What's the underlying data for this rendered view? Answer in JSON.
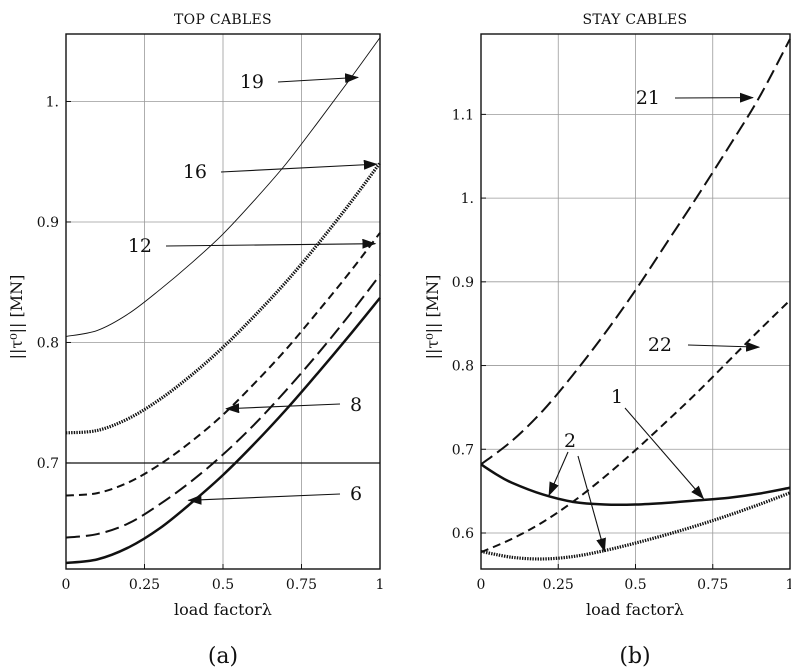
{
  "chart_data": [
    {
      "type": "line",
      "panel_caption": "(a)",
      "title": "TOP CABLES",
      "xlabel": "load factorλ",
      "ylabel": "||τ⁰|| [MN]",
      "xlim": [
        0,
        1
      ],
      "ylim": [
        0.612,
        1.056
      ],
      "xticks": [
        0,
        0.25,
        0.5,
        0.75,
        1
      ],
      "xtick_labels": [
        "0",
        "0.25",
        "0.5",
        "0.75",
        "1"
      ],
      "yticks": [
        0.7,
        0.8,
        0.9,
        1.0
      ],
      "ytick_labels": [
        "0.7",
        "0.8",
        "0.9",
        "1."
      ],
      "grid": true,
      "reference_line_y": 0.7,
      "series": [
        {
          "name": "19",
          "style": "thin",
          "x": [
            0,
            0.1,
            0.2,
            0.3,
            0.4,
            0.5,
            0.6,
            0.7,
            0.8,
            0.9,
            1.0
          ],
          "y": [
            0.805,
            0.81,
            0.824,
            0.844,
            0.866,
            0.89,
            0.918,
            0.948,
            0.982,
            1.017,
            1.053
          ]
        },
        {
          "name": "16",
          "style": "dotted-thick",
          "x": [
            0,
            0.1,
            0.2,
            0.3,
            0.4,
            0.5,
            0.6,
            0.7,
            0.8,
            0.9,
            1.0
          ],
          "y": [
            0.725,
            0.727,
            0.737,
            0.753,
            0.773,
            0.796,
            0.822,
            0.85,
            0.881,
            0.914,
            0.949
          ]
        },
        {
          "name": "12",
          "style": "dashed",
          "x": [
            0,
            0.1,
            0.2,
            0.3,
            0.4,
            0.5,
            0.6,
            0.7,
            0.8,
            0.9,
            1.0
          ],
          "y": [
            0.673,
            0.675,
            0.684,
            0.699,
            0.718,
            0.74,
            0.766,
            0.794,
            0.825,
            0.857,
            0.891
          ]
        },
        {
          "name": "8",
          "style": "long-dashed",
          "x": [
            0,
            0.1,
            0.2,
            0.3,
            0.4,
            0.5,
            0.6,
            0.7,
            0.8,
            0.9,
            1.0
          ],
          "y": [
            0.638,
            0.641,
            0.65,
            0.666,
            0.685,
            0.707,
            0.732,
            0.76,
            0.79,
            0.822,
            0.856
          ]
        },
        {
          "name": "6",
          "style": "solid-thick",
          "x": [
            0,
            0.1,
            0.2,
            0.3,
            0.4,
            0.5,
            0.6,
            0.7,
            0.8,
            0.9,
            1.0
          ],
          "y": [
            0.617,
            0.62,
            0.63,
            0.646,
            0.667,
            0.69,
            0.716,
            0.744,
            0.774,
            0.805,
            0.837
          ]
        }
      ],
      "annotations": [
        {
          "label": "19",
          "at_x": 0.93,
          "at_y": 1.02
        },
        {
          "label": "16",
          "at_x": 0.99,
          "at_y": 0.948
        },
        {
          "label": "12",
          "at_x": 0.985,
          "at_y": 0.882
        },
        {
          "label": "8",
          "at_x": 0.51,
          "at_y": 0.745
        },
        {
          "label": "6",
          "at_x": 0.39,
          "at_y": 0.669
        }
      ]
    },
    {
      "type": "line",
      "panel_caption": "(b)",
      "title": "STAY CABLES",
      "xlabel": "load factorλ",
      "ylabel": "||τ⁰|| [MN]",
      "xlim": [
        0,
        1
      ],
      "ylim": [
        0.557,
        1.196
      ],
      "xticks": [
        0,
        0.25,
        0.5,
        0.75,
        1
      ],
      "xtick_labels": [
        "0",
        "0.25",
        "0.5",
        "0.75",
        "1"
      ],
      "yticks": [
        0.6,
        0.7,
        0.8,
        0.9,
        1.0,
        1.1
      ],
      "ytick_labels": [
        "0.6",
        "0.7",
        "0.8",
        "0.9",
        "1.",
        "1.1"
      ],
      "grid": true,
      "series": [
        {
          "name": "21",
          "style": "long-dashed",
          "x": [
            0,
            0.1,
            0.2,
            0.3,
            0.4,
            0.5,
            0.6,
            0.7,
            0.8,
            0.9,
            1.0
          ],
          "y": [
            0.682,
            0.71,
            0.746,
            0.79,
            0.838,
            0.89,
            0.946,
            1.002,
            1.06,
            1.12,
            1.19
          ]
        },
        {
          "name": "22",
          "style": "dashed",
          "x": [
            0,
            0.1,
            0.2,
            0.3,
            0.4,
            0.5,
            0.6,
            0.7,
            0.8,
            0.9,
            1.0
          ],
          "y": [
            0.577,
            0.593,
            0.613,
            0.638,
            0.667,
            0.699,
            0.733,
            0.768,
            0.805,
            0.842,
            0.878
          ]
        },
        {
          "name": "1",
          "style": "solid-thick",
          "x": [
            0,
            0.05,
            0.1,
            0.2,
            0.3,
            0.4,
            0.5,
            0.6,
            0.7,
            0.8,
            0.9,
            1.0
          ],
          "y": [
            0.682,
            0.67,
            0.66,
            0.646,
            0.637,
            0.634,
            0.634,
            0.636,
            0.639,
            0.642,
            0.647,
            0.654
          ]
        },
        {
          "name": "2",
          "style": "dotted-thick",
          "x": [
            0,
            0.1,
            0.2,
            0.3,
            0.4,
            0.5,
            0.6,
            0.7,
            0.8,
            0.9,
            1.0
          ],
          "y": [
            0.578,
            0.571,
            0.569,
            0.572,
            0.579,
            0.588,
            0.598,
            0.609,
            0.621,
            0.634,
            0.648
          ]
        }
      ],
      "annotations": [
        {
          "label": "21",
          "at_x": 0.88,
          "at_y": 1.12
        },
        {
          "label": "22",
          "at_x": 0.9,
          "at_y": 0.822
        },
        {
          "label": "1",
          "at_x": 0.72,
          "at_y": 0.641
        },
        {
          "label": "2a",
          "at_x": 0.22,
          "at_y": 0.645
        },
        {
          "label": "2b",
          "at_x": 0.4,
          "at_y": 0.578
        }
      ]
    }
  ]
}
